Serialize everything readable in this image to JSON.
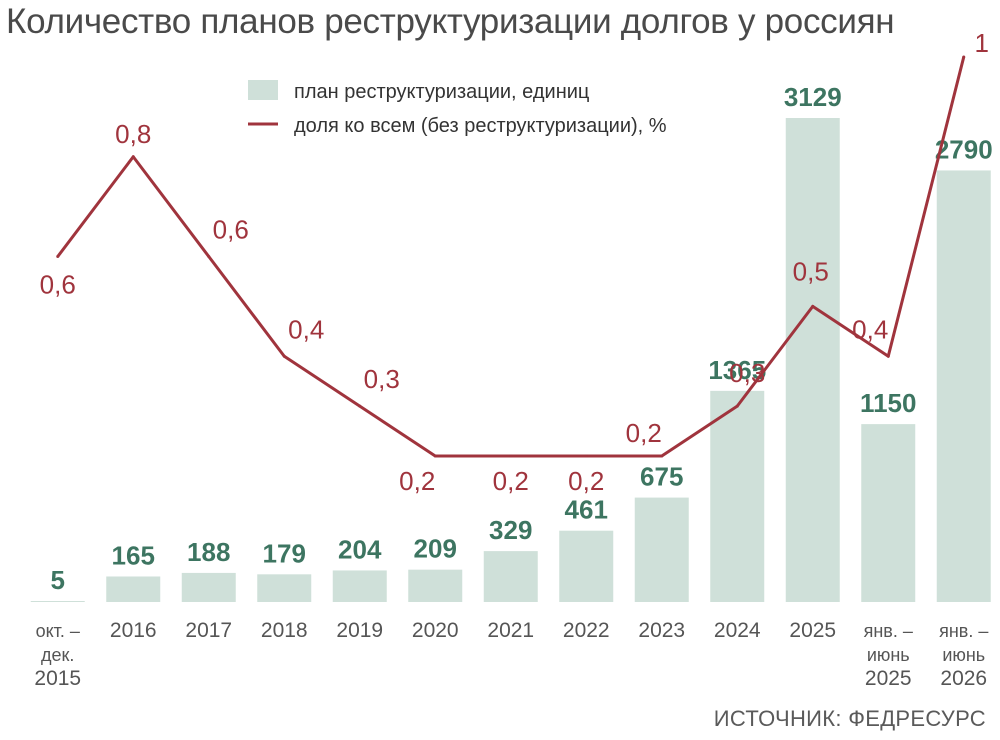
{
  "title": "Количество планов реструктуризации долгов у россиян",
  "source": "ИСТОЧНИК: ФЕДРЕСУРС",
  "colors": {
    "bar": "#cfe0d9",
    "line": "#a0343d",
    "bar_label": "#3d7561",
    "text": "#4a4a4a"
  },
  "chart_data": {
    "type": "bar",
    "title": "Количество планов реструктуризации долгов у россиян",
    "categories": [
      [
        "окт. –",
        "дек.",
        "2015"
      ],
      [
        "2016"
      ],
      [
        "2017"
      ],
      [
        "2018"
      ],
      [
        "2019"
      ],
      [
        "2020"
      ],
      [
        "2021"
      ],
      [
        "2022"
      ],
      [
        "2023"
      ],
      [
        "2024"
      ],
      [
        "2025"
      ],
      [
        "янв. –",
        "июнь",
        "2025"
      ],
      [
        "янв. –",
        "июнь",
        "2026"
      ]
    ],
    "series": [
      {
        "name": "план реструктуризации, единиц",
        "type": "bar",
        "values": [
          5,
          165,
          188,
          179,
          204,
          209,
          329,
          461,
          675,
          1365,
          3129,
          1150,
          2790
        ],
        "labels": [
          "5",
          "165",
          "188",
          "179",
          "204",
          "209",
          "329",
          "461",
          "675",
          "1365",
          "3129",
          "1150",
          "2790"
        ]
      },
      {
        "name": "доля ко всем (без реструктуризации), %",
        "type": "line",
        "values": [
          0.6,
          0.8,
          0.6,
          0.4,
          0.3,
          0.2,
          0.2,
          0.2,
          0.2,
          0.3,
          0.5,
          0.4,
          1
        ],
        "labels": [
          "0,6",
          "0,8",
          "0,6",
          "0,4",
          "0,3",
          "0,2",
          "0,2",
          "0,2",
          "0,2",
          "0,3",
          "0,5",
          "0,4",
          "1"
        ]
      }
    ],
    "legend_position": "top"
  }
}
